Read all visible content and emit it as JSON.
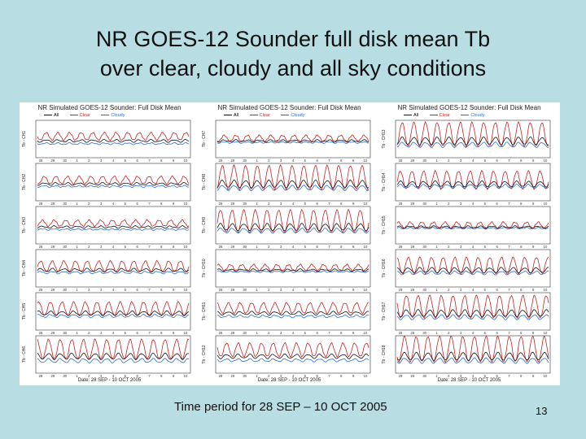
{
  "slide": {
    "title_line1": "NR GOES-12 Sounder full disk mean Tb",
    "title_line2": "over clear, cloudy and all sky conditions",
    "caption": "Time period for 28 SEP – 10 OCT 2005",
    "page_number": "13"
  },
  "colors": {
    "all": "#111111",
    "clear": "#cc2020",
    "cloudy": "#2a6bd1"
  },
  "chart_data": {
    "type": "line",
    "legend": [
      "All",
      "Clear",
      "Cloudy"
    ],
    "x_tick_labels": [
      "28",
      "29",
      "30",
      "1",
      "2",
      "3",
      "4",
      "5",
      "6",
      "7",
      "8",
      "9",
      "10"
    ],
    "xlabel": "Date: 28 SEP - 10 OCT 2005",
    "columns": [
      {
        "title": "NR Simulated GOES-12 Sounder: Full Disk Mean",
        "ylabels": [
          "Tb - CH1",
          "Tb - CH2",
          "Tb - CH3",
          "Tb - CH4",
          "Tb - CH5",
          "Tb - CH6"
        ]
      },
      {
        "title": "NR Simulated GOES-12 Sounder: Full Disk Mean",
        "ylabels": [
          "Tb - CH7",
          "Tb - CH8",
          "Tb - CH9",
          "Tb - CH10",
          "Tb - CH11",
          "Tb - CH12"
        ]
      },
      {
        "title": "NR Simulated GOES-12 Sounder: Full Disk Mean",
        "ylabels": [
          "Tb - CH13",
          "Tb - CH14",
          "Tb - CH15",
          "Tb - CH16",
          "Tb - CH17",
          "Tb - CH18"
        ]
      }
    ],
    "series_shape": [
      [
        {
          "clear_amp": 0.25,
          "sep": 0.35
        },
        {
          "clear_amp": 0.25,
          "sep": 0.3
        },
        {
          "clear_amp": 0.2,
          "sep": 0.3
        },
        {
          "clear_amp": 0.35,
          "sep": 0.3
        },
        {
          "clear_amp": 0.45,
          "sep": 0.35
        },
        {
          "clear_amp": 0.65,
          "sep": 0.55
        }
      ],
      [
        {
          "clear_amp": 0.2,
          "sep": 0.2
        },
        {
          "clear_amp": 0.8,
          "sep": 0.5
        },
        {
          "clear_amp": 0.75,
          "sep": 0.45
        },
        {
          "clear_amp": 0.2,
          "sep": 0.2
        },
        {
          "clear_amp": 0.35,
          "sep": 0.4
        },
        {
          "clear_amp": 0.45,
          "sep": 0.5
        }
      ],
      [
        {
          "clear_amp": 0.8,
          "sep": 0.5
        },
        {
          "clear_amp": 0.6,
          "sep": 0.3
        },
        {
          "clear_amp": 0.2,
          "sep": 0.15
        },
        {
          "clear_amp": 0.55,
          "sep": 0.35
        },
        {
          "clear_amp": 0.75,
          "sep": 0.5
        },
        {
          "clear_amp": 0.85,
          "sep": 0.55
        }
      ]
    ]
  }
}
